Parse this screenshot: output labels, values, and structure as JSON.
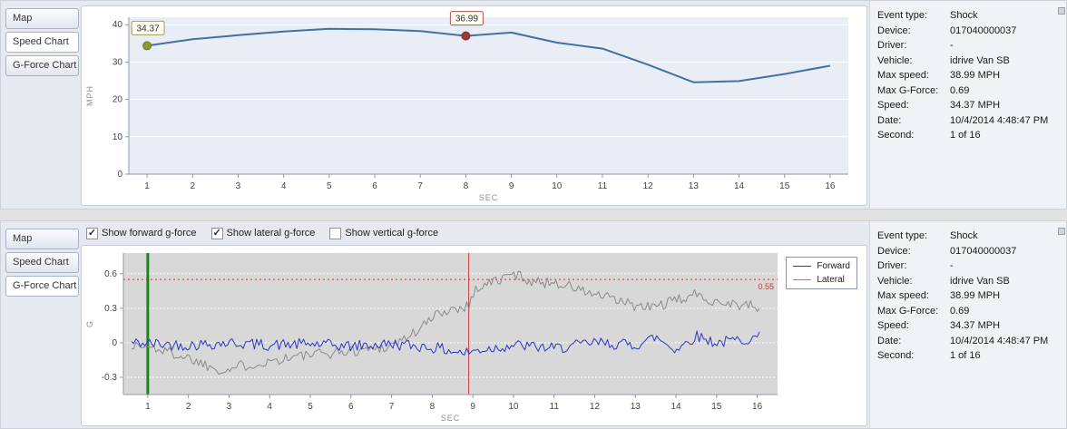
{
  "panels": [
    {
      "name": "speed",
      "tabs": [
        {
          "label": "Map",
          "selected": false
        },
        {
          "label": "Speed Chart",
          "selected": true
        },
        {
          "label": "G-Force Chart",
          "selected": false
        }
      ]
    },
    {
      "name": "gforce",
      "tabs": [
        {
          "label": "Map",
          "selected": false
        },
        {
          "label": "Speed Chart",
          "selected": false
        },
        {
          "label": "G-Force Chart",
          "selected": true
        }
      ],
      "checkboxes": [
        {
          "label": "Show forward g-force",
          "checked": true
        },
        {
          "label": "Show lateral g-force",
          "checked": true
        },
        {
          "label": "Show vertical g-force",
          "checked": false
        }
      ]
    }
  ],
  "info": {
    "rows": [
      {
        "label": "Event type:",
        "value": "Shock"
      },
      {
        "label": "Device:",
        "value": "017040000037"
      },
      {
        "label": "Driver:",
        "value": "-"
      },
      {
        "label": "Vehicle:",
        "value": "idrive Van SB"
      },
      {
        "label": "Max speed:",
        "value": "38.99 MPH"
      },
      {
        "label": "Max G-Force:",
        "value": "0.69"
      },
      {
        "label": "Speed:",
        "value": "34.37 MPH"
      },
      {
        "label": "Date:",
        "value": "10/4/2014 4:48:47 PM"
      },
      {
        "label": "Second:",
        "value": "1 of 16"
      }
    ]
  },
  "chart_data": [
    {
      "id": "speed",
      "type": "line",
      "title": "",
      "xlabel": "SEC",
      "ylabel": "MPH",
      "x": [
        1,
        2,
        3,
        4,
        5,
        6,
        7,
        8,
        9,
        10,
        11,
        12,
        13,
        14,
        15,
        16
      ],
      "series": [
        {
          "name": "Speed",
          "color": "#4270a4",
          "width": 2,
          "values": [
            34.37,
            36.1,
            37.2,
            38.2,
            38.9,
            38.8,
            38.3,
            36.99,
            37.9,
            35.2,
            33.6,
            29.3,
            24.6,
            24.9,
            26.8,
            29.0
          ]
        }
      ],
      "xlim": [
        0.6,
        16.4
      ],
      "ylim": [
        0,
        42
      ],
      "xticks": [
        1,
        2,
        3,
        4,
        5,
        6,
        7,
        8,
        9,
        10,
        11,
        12,
        13,
        14,
        15,
        16
      ],
      "yticks": [
        0,
        10,
        20,
        30,
        40
      ],
      "plot_bg": "#e9eef6",
      "grid_color": "#ffffff",
      "markers": [
        {
          "x": 1,
          "y": 34.37,
          "label": "34.37",
          "color": "#8d9a33",
          "stroke": "#6f7a28",
          "box_border": "#9aa04c"
        },
        {
          "x": 8,
          "y": 36.99,
          "label": "36.99",
          "color": "#9e3b37",
          "stroke": "#7c2d2a",
          "box_border": "#b05550"
        }
      ]
    },
    {
      "id": "gforce",
      "type": "line",
      "title": "",
      "xlabel": "SEC",
      "ylabel": "G",
      "xlim": [
        0.4,
        16.5
      ],
      "ylim": [
        -0.45,
        0.78
      ],
      "xticks": [
        1,
        2,
        3,
        4,
        5,
        6,
        7,
        8,
        9,
        10,
        11,
        12,
        13,
        14,
        15,
        16
      ],
      "yticks": [
        -0.3,
        0,
        0.3,
        0.6
      ],
      "plot_bg": "#d8d8d8",
      "grid_color": "#ffffff",
      "grid_dash": "2,2",
      "vlines": [
        {
          "x": 1,
          "color": "#138a13",
          "width": 3
        },
        {
          "x": 8.9,
          "color": "#cc3333",
          "width": 1
        }
      ],
      "hlines": [
        {
          "y": 0.55,
          "color": "#cc3333",
          "dash": "2,3",
          "label": "0.55"
        }
      ],
      "series": [
        {
          "name": "Forward",
          "color": "#2a35c8",
          "width": 1,
          "seed": 42,
          "step": 0.055,
          "noise_amp": 0.05,
          "keypoints": [
            [
              0.6,
              0.0
            ],
            [
              2,
              -0.02
            ],
            [
              3,
              0.0
            ],
            [
              4,
              -0.02
            ],
            [
              5,
              -0.01
            ],
            [
              6,
              -0.03
            ],
            [
              7,
              -0.01
            ],
            [
              8,
              -0.04
            ],
            [
              8.8,
              -0.09
            ],
            [
              9.2,
              -0.06
            ],
            [
              10,
              -0.02
            ],
            [
              11,
              -0.05
            ],
            [
              12,
              0.0
            ],
            [
              13,
              -0.02
            ],
            [
              13.5,
              0.05
            ],
            [
              14,
              -0.06
            ],
            [
              14.5,
              0.06
            ],
            [
              15,
              0.0
            ],
            [
              16.1,
              0.05
            ]
          ]
        },
        {
          "name": "Lateral",
          "color": "#8a8a8a",
          "width": 1,
          "seed": 1337,
          "step": 0.055,
          "noise_amp": 0.05,
          "keypoints": [
            [
              0.6,
              -0.02
            ],
            [
              1.2,
              -0.05
            ],
            [
              2,
              -0.13
            ],
            [
              2.5,
              -0.2
            ],
            [
              2.9,
              -0.24
            ],
            [
              3.3,
              -0.2
            ],
            [
              4,
              -0.16
            ],
            [
              4.6,
              -0.12
            ],
            [
              5.2,
              -0.1
            ],
            [
              6,
              -0.07
            ],
            [
              6.6,
              -0.05
            ],
            [
              7,
              -0.02
            ],
            [
              7.4,
              0.05
            ],
            [
              7.8,
              0.15
            ],
            [
              8.2,
              0.27
            ],
            [
              8.6,
              0.3
            ],
            [
              8.9,
              0.33
            ],
            [
              9.1,
              0.48
            ],
            [
              9.4,
              0.52
            ],
            [
              9.7,
              0.55
            ],
            [
              10,
              0.6
            ],
            [
              10.3,
              0.56
            ],
            [
              10.6,
              0.52
            ],
            [
              11,
              0.53
            ],
            [
              11.3,
              0.5
            ],
            [
              11.7,
              0.45
            ],
            [
              12,
              0.42
            ],
            [
              12.4,
              0.38
            ],
            [
              12.8,
              0.34
            ],
            [
              13.2,
              0.3
            ],
            [
              13.6,
              0.33
            ],
            [
              14,
              0.36
            ],
            [
              14.4,
              0.42
            ],
            [
              14.8,
              0.38
            ],
            [
              15.2,
              0.35
            ],
            [
              15.6,
              0.33
            ],
            [
              16.1,
              0.3
            ]
          ]
        }
      ]
    }
  ]
}
